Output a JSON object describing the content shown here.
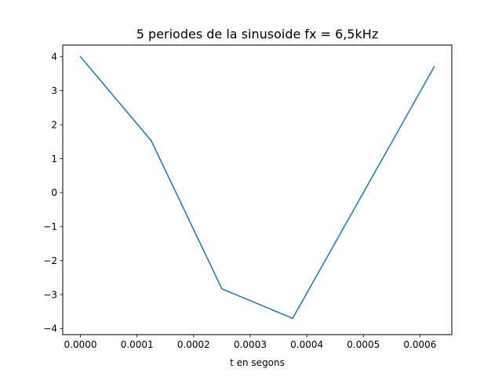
{
  "chart_data": {
    "type": "line",
    "title": "5 periodes de la sinusoide fx = 6,5kHz",
    "xlabel": "t en segons",
    "ylabel": "",
    "xlim": [
      -3.125e-05,
      0.00065625
    ],
    "ylim": [
      -4.18,
      4.34
    ],
    "grid": false,
    "x_ticks": [
      0.0,
      0.0001,
      0.0002,
      0.0003,
      0.0004,
      0.0005,
      0.0006
    ],
    "x_tick_labels": [
      "0.0000",
      "0.0001",
      "0.0002",
      "0.0003",
      "0.0004",
      "0.0005",
      "0.0006"
    ],
    "y_ticks": [
      -4,
      -3,
      -2,
      -1,
      0,
      1,
      2,
      3,
      4
    ],
    "y_tick_labels": [
      "−4",
      "−3",
      "−2",
      "−1",
      "0",
      "1",
      "2",
      "3",
      "4"
    ],
    "series": [
      {
        "color": "#1f77b4",
        "x": [
          0.0,
          0.000125,
          0.00025,
          0.000375,
          0.000625
        ],
        "y": [
          4.0,
          1.53,
          -2.83,
          -3.7,
          3.7
        ]
      }
    ]
  }
}
